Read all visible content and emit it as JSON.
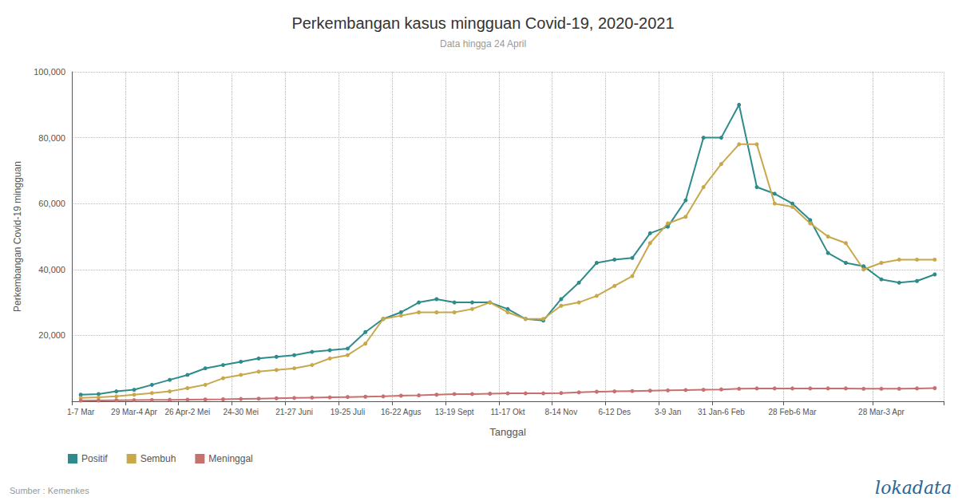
{
  "chart_data": {
    "type": "line",
    "title": "Perkembangan kasus mingguan Covid-19, 2020-2021",
    "subtitle": "Data hingga 24 April",
    "x_label": "Tanggal",
    "y_label": "Perkembangan Covid-19 mingguan",
    "annotations": [
      "Sumber : Kemenkes",
      "lokadata"
    ],
    "categories": [
      "1-7 Mar",
      null,
      null,
      "29 Mar-4 Apr",
      null,
      null,
      "26 Apr-2 Mei",
      null,
      null,
      "24-30 Mei",
      null,
      null,
      "21-27 Juni",
      null,
      null,
      "19-25 Juli",
      null,
      null,
      "16-22 Agus",
      null,
      null,
      "13-19 Sept",
      null,
      null,
      "11-17 Okt",
      null,
      null,
      "8-14 Nov",
      null,
      null,
      "6-12 Des",
      null,
      null,
      "3-9 Jan",
      null,
      null,
      "31 Jan-6 Feb",
      null,
      null,
      null,
      "28 Feb-6 Mar",
      null,
      null,
      null,
      null,
      "28 Mar-3 Apr",
      null,
      null,
      null
    ],
    "series": [
      {
        "name": "Positif",
        "color": "#2d8b8b",
        "values": [
          2000,
          2200,
          3000,
          3500,
          5000,
          6500,
          8000,
          10000,
          11000,
          12000,
          13000,
          13500,
          14000,
          15000,
          15500,
          16000,
          21000,
          25000,
          27000,
          30000,
          31000,
          30000,
          30000,
          30000,
          28000,
          25000,
          24500,
          31000,
          36000,
          42000,
          43000,
          43500,
          51000,
          53000,
          61000,
          80000,
          80000,
          90000,
          65000,
          63000,
          60000,
          55000,
          45000,
          42000,
          41000,
          37000,
          36000,
          36500,
          38500
        ]
      },
      {
        "name": "Sembuh",
        "color": "#c8a84b",
        "values": [
          1000,
          1200,
          1500,
          2000,
          2500,
          3000,
          4000,
          5000,
          7000,
          8000,
          9000,
          9500,
          10000,
          11000,
          13000,
          14000,
          17500,
          25000,
          26000,
          27000,
          27000,
          27000,
          28000,
          30000,
          27000,
          25000,
          25000,
          29000,
          30000,
          32000,
          35000,
          38000,
          48000,
          54000,
          56000,
          65000,
          72000,
          78000,
          78000,
          60000,
          59000,
          54000,
          50000,
          48000,
          40000,
          42000,
          43000,
          43000,
          43000
        ]
      },
      {
        "name": "Meninggal",
        "color": "#c87070",
        "values": [
          200,
          250,
          300,
          350,
          400,
          450,
          500,
          550,
          600,
          700,
          800,
          900,
          1000,
          1100,
          1200,
          1300,
          1400,
          1500,
          1700,
          1800,
          2000,
          2200,
          2200,
          2300,
          2400,
          2400,
          2400,
          2500,
          2700,
          2900,
          3000,
          3100,
          3200,
          3300,
          3400,
          3500,
          3600,
          3800,
          3900,
          3900,
          3900,
          3900,
          3900,
          3900,
          3800,
          3800,
          3800,
          3900,
          4000
        ]
      }
    ],
    "marker": "circle",
    "ylim": [
      0,
      100000
    ],
    "yticks": [
      {
        "value": 20000,
        "label": "20,000"
      },
      {
        "value": 40000,
        "label": "40,000"
      },
      {
        "value": 60000,
        "label": "60,000"
      },
      {
        "value": 80000,
        "label": "80,000"
      },
      {
        "value": 100000,
        "label": "100,000"
      }
    ],
    "grid": true,
    "legend": "lower left"
  }
}
